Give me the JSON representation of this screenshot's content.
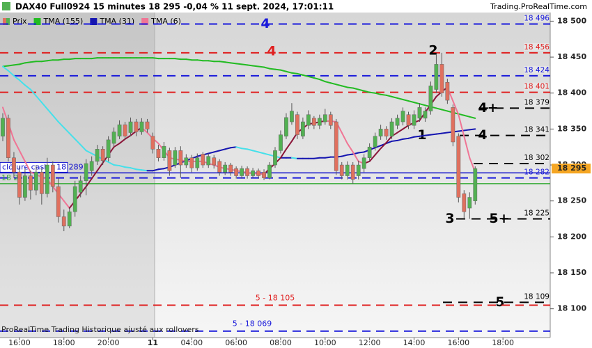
{
  "chart_data": {
    "type": "candlestick",
    "title": "DAX40 Full0924 15 minutes 18 295 -0,04 % 11 sept. 2024, 17:01:11",
    "source": "Trading.ProRealTime.com",
    "footer": "ProRealTime Trading  Historique ajusté aux rollovers",
    "categories": [
      null,
      null,
      null,
      "16:00",
      null,
      null,
      null,
      null,
      null,
      null,
      null,
      "18:00",
      null,
      null,
      null,
      null,
      null,
      null,
      null,
      "20:00",
      null,
      null,
      null,
      null,
      null,
      null,
      null,
      "11",
      null,
      null,
      null,
      null,
      null,
      null,
      "04:00",
      null,
      null,
      null,
      null,
      null,
      null,
      null,
      "06:00",
      null,
      null,
      null,
      null,
      null,
      null,
      null,
      "08:00",
      null,
      null,
      null,
      null,
      null,
      null,
      null,
      "10:00",
      null,
      null,
      null,
      null,
      null,
      null,
      null,
      "12:00",
      null,
      null,
      null,
      null,
      null,
      null,
      null,
      "14:00",
      null,
      null,
      null,
      null,
      null,
      null,
      null,
      "16:00",
      null,
      null,
      null,
      null,
      null,
      null,
      null,
      "18:00",
      null,
      null,
      null,
      null,
      null,
      null,
      null,
      null
    ],
    "ylim": [
      18060,
      18512
    ],
    "yticks": [
      {
        "value": 18100,
        "label": "18 100"
      },
      {
        "value": 18150,
        "label": "18 150"
      },
      {
        "value": 18200,
        "label": "18 200"
      },
      {
        "value": 18250,
        "label": "18 250"
      },
      {
        "value": 18300,
        "label": "18 300"
      },
      {
        "value": 18350,
        "label": "18 350"
      },
      {
        "value": 18400,
        "label": "18 400"
      },
      {
        "value": 18450,
        "label": "18 450"
      },
      {
        "value": 18500,
        "label": "18 500"
      }
    ],
    "candles": {
      "name": "Prix",
      "up_color": "#52b152",
      "down_color": "#e0705e",
      "open": [
        18340,
        18365,
        18310,
        18290,
        18255,
        18285,
        18265,
        18290,
        18260,
        18300,
        18270,
        18228,
        18215,
        18235,
        18262,
        18278,
        18292,
        18305,
        18322,
        18310,
        18330,
        18340,
        18356,
        18345,
        18360,
        18346,
        18360,
        18340,
        18322,
        18310,
        18320,
        18300,
        18320,
        18300,
        18310,
        18296,
        18315,
        18300,
        18310,
        18305,
        18290,
        18300,
        18295,
        18285,
        18295,
        18285,
        18292,
        18290,
        18282,
        18300,
        18320,
        18340,
        18360,
        18370,
        18340,
        18355,
        18365,
        18355,
        18360,
        18370,
        18360,
        18300,
        18285,
        18300,
        18285,
        18295,
        18310,
        18325,
        18340,
        18350,
        18340,
        18355,
        18360,
        18370,
        18355,
        18365,
        18365,
        18375,
        18405,
        18440,
        18415,
        18380,
        18340,
        18260,
        18240,
        18250,
        null,
        null,
        null,
        null,
        null,
        null,
        null,
        null,
        null,
        null,
        null,
        null,
        null
      ],
      "high": [
        18372,
        18370,
        18318,
        18298,
        18295,
        18292,
        18300,
        18296,
        18310,
        18305,
        18282,
        18238,
        18240,
        18278,
        18285,
        18308,
        18312,
        18328,
        18326,
        18340,
        18352,
        18362,
        18360,
        18366,
        18364,
        18365,
        18364,
        18345,
        18328,
        18332,
        18324,
        18325,
        18326,
        18315,
        18314,
        18316,
        18318,
        18316,
        18314,
        18308,
        18304,
        18303,
        18298,
        18299,
        18298,
        18296,
        18295,
        18294,
        18304,
        18325,
        18348,
        18372,
        18386,
        18374,
        18366,
        18376,
        18368,
        18370,
        18378,
        18374,
        18364,
        18304,
        18305,
        18304,
        18306,
        18315,
        18330,
        18345,
        18356,
        18354,
        18365,
        18370,
        18380,
        18374,
        18376,
        18386,
        18380,
        18416,
        18455,
        18456,
        18420,
        18384,
        18344,
        18265,
        18262,
        18298,
        null,
        null,
        null,
        null,
        null,
        null,
        null,
        null,
        null,
        null,
        null,
        null,
        null
      ],
      "low": [
        18333,
        18305,
        18282,
        18245,
        18250,
        18252,
        18258,
        18245,
        18255,
        18262,
        18220,
        18208,
        18212,
        18228,
        18255,
        18258,
        18285,
        18300,
        18300,
        18305,
        18325,
        18336,
        18335,
        18340,
        18340,
        18342,
        18345,
        18316,
        18305,
        18306,
        18285,
        18296,
        18282,
        18296,
        18290,
        18292,
        18296,
        18296,
        18295,
        18285,
        18286,
        18285,
        18281,
        18281,
        18281,
        18282,
        18281,
        18279,
        18280,
        18296,
        18316,
        18336,
        18356,
        18336,
        18336,
        18350,
        18350,
        18350,
        18356,
        18350,
        18286,
        18280,
        18280,
        18274,
        18280,
        18290,
        18305,
        18320,
        18335,
        18335,
        18336,
        18350,
        18355,
        18350,
        18350,
        18360,
        18360,
        18370,
        18400,
        18395,
        18385,
        18326,
        18248,
        18225,
        18225,
        18245,
        null,
        null,
        null,
        null,
        null,
        null,
        null,
        null,
        null,
        null,
        null,
        null,
        null
      ],
      "close": [
        18365,
        18310,
        18290,
        18255,
        18285,
        18265,
        18290,
        18260,
        18300,
        18270,
        18228,
        18215,
        18235,
        18270,
        18278,
        18302,
        18305,
        18322,
        18306,
        18335,
        18346,
        18356,
        18340,
        18360,
        18346,
        18360,
        18350,
        18322,
        18310,
        18326,
        18292,
        18320,
        18300,
        18310,
        18296,
        18310,
        18300,
        18312,
        18300,
        18290,
        18300,
        18290,
        18285,
        18295,
        18285,
        18292,
        18285,
        18282,
        18300,
        18320,
        18342,
        18366,
        18375,
        18342,
        18360,
        18370,
        18355,
        18365,
        18370,
        18355,
        18292,
        18285,
        18300,
        18280,
        18300,
        18310,
        18325,
        18340,
        18350,
        18340,
        18360,
        18365,
        18375,
        18355,
        18370,
        18380,
        18375,
        18410,
        18440,
        18400,
        18390,
        18332,
        18255,
        18235,
        18255,
        18295,
        null,
        null,
        null,
        null,
        null,
        null,
        null,
        null,
        null,
        null,
        null,
        null,
        null
      ]
    },
    "series": [
      {
        "name": "TMA (155)",
        "color": "#22bb22",
        "values": [
          18437,
          18438,
          18439,
          18440,
          18442,
          18443,
          18444,
          18444,
          18445,
          18446,
          18446,
          18447,
          18447,
          18448,
          18448,
          18448,
          18448,
          18449,
          18449,
          18449,
          18449,
          18449,
          18449,
          18449,
          18449,
          18449,
          18449,
          18449,
          18448,
          18448,
          18448,
          18448,
          18447,
          18447,
          18446,
          18446,
          18445,
          18445,
          18444,
          18444,
          18443,
          18442,
          18441,
          18440,
          18439,
          18438,
          18437,
          18436,
          18434,
          18433,
          18432,
          18430,
          18428,
          18427,
          18425,
          18423,
          18421,
          18419,
          18416,
          18414,
          18412,
          18410,
          18408,
          18407,
          18405,
          18403,
          18401,
          18400,
          18398,
          18397,
          18395,
          18393,
          18391,
          18389,
          18387,
          18385,
          18383,
          18381,
          18379,
          18377,
          18375,
          18373,
          18371,
          18369,
          18367,
          18365,
          null,
          null,
          null,
          null,
          null,
          null,
          null,
          null,
          null,
          null,
          null,
          null,
          null
        ]
      },
      {
        "name": "TMA (31)",
        "color": "#1515b0",
        "alt_color": "#45e0ea",
        "alt_when": "falling",
        "values": [
          18437,
          18431,
          18424,
          18418,
          18411,
          18405,
          18396,
          18387,
          18378,
          18369,
          18360,
          18352,
          18344,
          18336,
          18328,
          18320,
          18316,
          18312,
          18308,
          18304,
          18300,
          18299,
          18297,
          18296,
          18294,
          18293,
          18292,
          18292,
          18294,
          18295,
          18297,
          18300,
          18303,
          18306,
          18309,
          18312,
          18314,
          18316,
          18318,
          18320,
          18322,
          18324,
          18325,
          18323,
          18322,
          18320,
          18318,
          18316,
          18314,
          18312,
          18310,
          18310,
          18310,
          18309,
          18309,
          18309,
          18309,
          18310,
          18310,
          18311,
          18311,
          18312,
          18314,
          18315,
          18317,
          18318,
          18321,
          18324,
          18327,
          18330,
          18333,
          18334,
          18336,
          18337,
          18339,
          18340,
          18341,
          18342,
          18343,
          18344,
          18345,
          18346,
          18347,
          18348,
          18349,
          18350,
          null,
          null,
          null,
          null,
          null,
          null,
          null,
          null,
          null,
          null,
          null,
          null,
          null
        ]
      },
      {
        "name": "TMA (6)",
        "color": "#f07595",
        "alt_color": "#8b1538",
        "alt_when": "rising",
        "values": [
          18380,
          18358,
          18335,
          18320,
          18305,
          18290,
          18287,
          18283,
          18280,
          18270,
          18260,
          18250,
          18240,
          18250,
          18260,
          18270,
          18281,
          18292,
          18303,
          18314,
          18325,
          18330,
          18336,
          18341,
          18347,
          18352,
          18345,
          18337,
          18330,
          18320,
          18310,
          18308,
          18307,
          18305,
          18305,
          18305,
          18305,
          18302,
          18300,
          18297,
          18295,
          18294,
          18292,
          18291,
          18289,
          18288,
          18288,
          18287,
          18295,
          18302,
          18310,
          18322,
          18333,
          18345,
          18351,
          18357,
          18358,
          18360,
          18361,
          18361,
          18360,
          18345,
          18330,
          18318,
          18305,
          18302,
          18305,
          18314,
          18323,
          18331,
          18340,
          18345,
          18350,
          18355,
          18359,
          18362,
          18373,
          18384,
          18395,
          18402,
          18408,
          18389,
          18370,
          18340,
          18310,
          18290,
          null,
          null,
          null,
          null,
          null,
          null,
          null,
          null,
          null,
          null,
          null,
          null,
          null
        ]
      }
    ],
    "levels": [
      {
        "value": 18496,
        "label": "18 496",
        "color": "#1a1adb",
        "length": "full",
        "label_position": "right",
        "tags": [
          {
            "text": "4",
            "color": "#1a1adb"
          }
        ]
      },
      {
        "value": 18456,
        "label": "18 456",
        "color": "#e02020",
        "length": "full",
        "label_position": "right",
        "tags": [
          {
            "text": "4",
            "color": "#e02020"
          },
          {
            "text": "2",
            "color": "#000000"
          }
        ]
      },
      {
        "value": 18424,
        "label": "18 424",
        "color": "#1a1adb",
        "length": "full",
        "label_position": "right",
        "tags": []
      },
      {
        "value": 18401,
        "label": "18 401",
        "color": "#e02020",
        "length": "full",
        "label_position": "right",
        "tags": []
      },
      {
        "value": 18379,
        "label": "18 379",
        "color": "#000000",
        "length": "short",
        "label_position": "right",
        "tags": [
          {
            "text": "4+",
            "color": "#000000"
          }
        ]
      },
      {
        "value": 18341,
        "label": "18 341",
        "color": "#000000",
        "length": "short",
        "label_position": "right",
        "tags": [
          {
            "text": "1",
            "color": "#000000"
          },
          {
            "text": "4",
            "color": "#000000"
          }
        ]
      },
      {
        "value": 18302,
        "label": "18 302",
        "color": "#000000",
        "length": "short",
        "label_position": "right",
        "tags": []
      },
      {
        "value": 18282,
        "label": "18 282",
        "color": "#1a1adb",
        "length": "full",
        "label_position": "right",
        "tags": []
      },
      {
        "value": 18225,
        "label": "18 225",
        "color": "#000000",
        "length": "short",
        "label_position": "right",
        "tags": [
          {
            "text": "3",
            "color": "#000000"
          },
          {
            "text": "5+",
            "color": "#000000"
          }
        ]
      },
      {
        "value": 18109,
        "label": "18 109",
        "color": "#000000",
        "length": "short",
        "label_position": "right",
        "tags": [
          {
            "text": "5",
            "color": "#000000"
          }
        ]
      },
      {
        "value": 18105,
        "label": "5 -  18 105",
        "color": "#e02020",
        "length": "full",
        "label_position": "center",
        "tags": []
      },
      {
        "value": 18069,
        "label": "5 - 18 069",
        "color": "#1a1adb",
        "length": "full",
        "label_position": "center",
        "tags": []
      }
    ],
    "reference_lines": [
      {
        "value": 18289,
        "label": "clôture cash -  18 289",
        "color": "#1010cc"
      },
      {
        "value": 18274,
        "label": "18 2",
        "color": "#33aa33"
      }
    ],
    "last_price": {
      "value": 18295,
      "label": "18 295",
      "color": "#f5a623"
    }
  }
}
